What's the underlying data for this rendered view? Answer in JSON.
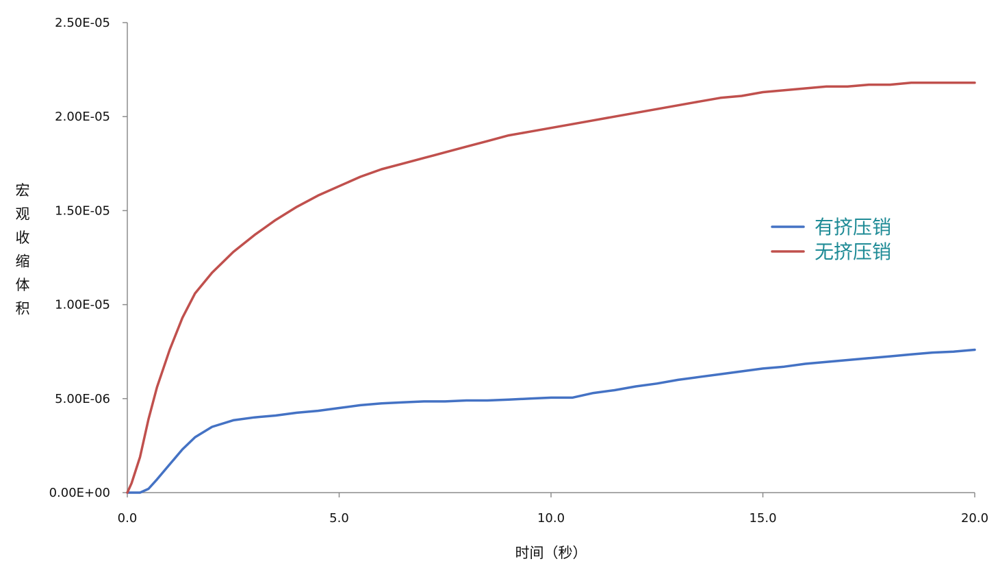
{
  "chart_data": {
    "type": "line",
    "title": "",
    "xlabel": "时间（秒）",
    "ylabel": "宏观收缩体积",
    "xlim": [
      0,
      20
    ],
    "ylim": [
      0,
      2.5e-05
    ],
    "x_ticks": [
      "0.0",
      "5.0",
      "10.0",
      "15.0",
      "20.0"
    ],
    "y_ticks": [
      "0.00E+00",
      "5.00E-06",
      "1.00E-05",
      "1.50E-05",
      "2.00E-05",
      "2.50E-05"
    ],
    "grid": false,
    "legend_position": "right",
    "series": [
      {
        "name": "有挤压销",
        "color": "#4472C4",
        "x": [
          0,
          0.3,
          0.5,
          0.7,
          1.0,
          1.3,
          1.6,
          2.0,
          2.5,
          3.0,
          3.5,
          4.0,
          4.5,
          5.0,
          5.5,
          6.0,
          6.5,
          7.0,
          7.5,
          8.0,
          8.5,
          9.0,
          9.5,
          10.0,
          10.5,
          11.0,
          11.5,
          12.0,
          12.5,
          13.0,
          13.5,
          14.0,
          14.5,
          15.0,
          15.5,
          16.0,
          16.5,
          17.0,
          17.5,
          18.0,
          18.5,
          19.0,
          19.5,
          20.0
        ],
        "y": [
          0,
          0,
          2e-07,
          7e-07,
          1.5e-06,
          2.3e-06,
          2.95e-06,
          3.5e-06,
          3.85e-06,
          4e-06,
          4.1e-06,
          4.25e-06,
          4.35e-06,
          4.5e-06,
          4.65e-06,
          4.75e-06,
          4.8e-06,
          4.85e-06,
          4.85e-06,
          4.9e-06,
          4.9e-06,
          4.95e-06,
          5e-06,
          5.05e-06,
          5.05e-06,
          5.3e-06,
          5.45e-06,
          5.65e-06,
          5.8e-06,
          6e-06,
          6.15e-06,
          6.3e-06,
          6.45e-06,
          6.6e-06,
          6.7e-06,
          6.85e-06,
          6.95e-06,
          7.05e-06,
          7.15e-06,
          7.25e-06,
          7.35e-06,
          7.45e-06,
          7.5e-06,
          7.6e-06
        ]
      },
      {
        "name": "无挤压销",
        "color": "#C0504D",
        "x": [
          0,
          0.1,
          0.3,
          0.5,
          0.7,
          1.0,
          1.3,
          1.6,
          2.0,
          2.5,
          3.0,
          3.5,
          4.0,
          4.5,
          5.0,
          5.5,
          6.0,
          6.5,
          7.0,
          7.5,
          8.0,
          8.5,
          9.0,
          9.5,
          10.0,
          10.5,
          11.0,
          11.5,
          12.0,
          12.5,
          13.0,
          13.5,
          14.0,
          14.5,
          15.0,
          15.5,
          16.0,
          16.5,
          17.0,
          17.5,
          18.0,
          18.5,
          19.0,
          19.5,
          20.0
        ],
        "y": [
          0,
          5e-07,
          1.9e-06,
          3.9e-06,
          5.6e-06,
          7.6e-06,
          9.3e-06,
          1.06e-05,
          1.17e-05,
          1.28e-05,
          1.37e-05,
          1.45e-05,
          1.52e-05,
          1.58e-05,
          1.63e-05,
          1.68e-05,
          1.72e-05,
          1.75e-05,
          1.78e-05,
          1.81e-05,
          1.84e-05,
          1.87e-05,
          1.9e-05,
          1.92e-05,
          1.94e-05,
          1.96e-05,
          1.98e-05,
          2e-05,
          2.02e-05,
          2.04e-05,
          2.06e-05,
          2.08e-05,
          2.1e-05,
          2.11e-05,
          2.13e-05,
          2.14e-05,
          2.15e-05,
          2.16e-05,
          2.16e-05,
          2.17e-05,
          2.17e-05,
          2.18e-05,
          2.18e-05,
          2.18e-05,
          2.18e-05
        ]
      }
    ]
  },
  "legend": {
    "text_color": "#1F8B96"
  }
}
